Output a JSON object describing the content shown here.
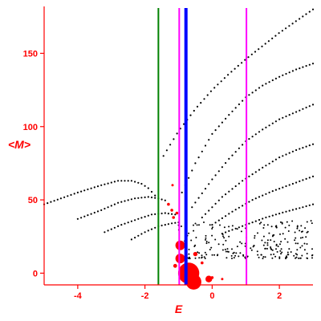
{
  "chart_data": {
    "type": "scatter",
    "xlabel": "E",
    "ylabel": "<M>",
    "xlim": [
      -5,
      3
    ],
    "ylim": [
      -8,
      182
    ],
    "xticks": [
      -4,
      -2,
      0,
      2
    ],
    "yticks": [
      0,
      50,
      100,
      150
    ],
    "grid": false,
    "axis_color": "#ff0000",
    "vertical_lines": [
      {
        "x": -1.6,
        "color": "#008000",
        "weight": "thin"
      },
      {
        "x": -0.98,
        "color": "#ff00ff",
        "weight": "thin"
      },
      {
        "x": -0.78,
        "color": "#0000ff",
        "weight": "thick"
      },
      {
        "x": 1.02,
        "color": "#ff00ff",
        "weight": "thin"
      }
    ],
    "series": [
      {
        "color": "#000000",
        "marker": "dot",
        "bands": [
          {
            "x": [
              -5.0,
              -4.0,
              -3.3,
              -2.8,
              -2.4,
              -2.1,
              -1.9,
              -1.7
            ],
            "y": [
              47,
              55,
              60,
              63,
              63,
              61,
              58,
              53
            ]
          },
          {
            "x": [
              -4.0,
              -3.3,
              -2.8,
              -2.3,
              -1.9,
              -1.6,
              -1.3
            ],
            "y": [
              37,
              43,
              48,
              51,
              52,
              51,
              49
            ]
          },
          {
            "x": [
              -3.2,
              -2.7,
              -2.2,
              -1.8,
              -1.4,
              -1.1
            ],
            "y": [
              28,
              33,
              37,
              40,
              41,
              40
            ]
          },
          {
            "x": [
              -2.4,
              -2.0,
              -1.6,
              -1.2,
              -0.9
            ],
            "y": [
              23,
              28,
              32,
              34,
              35
            ]
          },
          {
            "x": [
              -1.45,
              -1.0,
              -0.5,
              0.0,
              0.5,
              1.0,
              1.5,
              2.0,
              2.5,
              3.0
            ],
            "y": [
              80,
              97,
              112,
              125,
              136,
              146,
              155,
              164,
              172,
              180
            ]
          },
          {
            "x": [
              -0.9,
              -0.5,
              0.0,
              0.5,
              1.0,
              1.5,
              2.0,
              2.5,
              3.0
            ],
            "y": [
              55,
              75,
              95,
              108,
              120,
              128,
              134,
              139,
              143
            ]
          },
          {
            "x": [
              -0.6,
              0.0,
              0.5,
              1.0,
              1.5,
              2.0,
              2.5,
              3.0
            ],
            "y": [
              45,
              64,
              78,
              90,
              98,
              105,
              110,
              115
            ]
          },
          {
            "x": [
              -0.3,
              0.3,
              0.9,
              1.5,
              2.0,
              2.5,
              3.0
            ],
            "y": [
              38,
              52,
              63,
              72,
              79,
              84,
              88
            ]
          },
          {
            "x": [
              0.0,
              0.6,
              1.2,
              1.8,
              2.4,
              3.0
            ],
            "y": [
              33,
              42,
              50,
              56,
              61,
              66
            ]
          },
          {
            "x": [
              0.3,
              1.0,
              1.6,
              2.2,
              2.7,
              3.0
            ],
            "y": [
              27,
              33,
              38,
              42,
              45,
              47
            ]
          }
        ],
        "scatter_region": {
          "x": [
            -1.0,
            3.0
          ],
          "y": [
            10,
            36
          ]
        }
      },
      {
        "color": "#ff0000",
        "marker": "circle",
        "points": [
          {
            "x": -0.7,
            "y": 0,
            "size": 2.2
          },
          {
            "x": -0.95,
            "y": 10,
            "size": 1.0
          },
          {
            "x": -0.95,
            "y": 19,
            "size": 1.0
          },
          {
            "x": -0.55,
            "y": -6,
            "size": 1.6
          },
          {
            "x": -0.1,
            "y": -4,
            "size": 0.7
          },
          {
            "x": -0.5,
            "y": 13,
            "size": 0.45
          },
          {
            "x": -1.1,
            "y": 5,
            "size": 0.4
          },
          {
            "x": -1.3,
            "y": 47,
            "size": 0.3
          },
          {
            "x": -1.2,
            "y": 43,
            "size": 0.3
          },
          {
            "x": -1.15,
            "y": 38,
            "size": 0.3
          },
          {
            "x": -1.05,
            "y": 41,
            "size": 0.3
          },
          {
            "x": -1.18,
            "y": 60,
            "size": 0.25
          },
          {
            "x": -0.3,
            "y": 7,
            "size": 0.3
          },
          {
            "x": 0.0,
            "y": -3,
            "size": 0.3
          },
          {
            "x": 0.3,
            "y": -4,
            "size": 0.25
          }
        ]
      }
    ]
  }
}
